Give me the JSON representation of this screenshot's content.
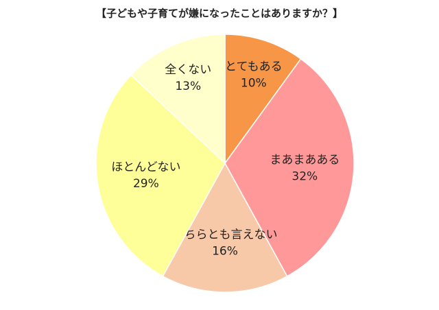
{
  "chart_data": {
    "type": "pie",
    "title": "【子どもや子育てが嫌になったことはありますか？】",
    "categories": [
      "とてもある",
      "まあまあある",
      "どちらとも言えない",
      "ほとんどない",
      "全くない"
    ],
    "values": [
      10,
      32,
      16,
      29,
      13
    ],
    "value_labels": [
      "10%",
      "32%",
      "16%",
      "29%",
      "13%"
    ],
    "colors": [
      "#f79646",
      "#ff9999",
      "#f8c9a9",
      "#ffff99",
      "#ffffcc"
    ]
  }
}
